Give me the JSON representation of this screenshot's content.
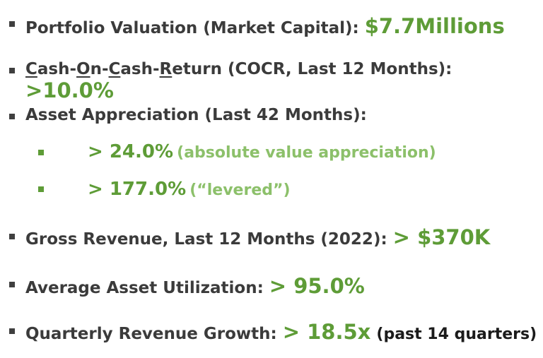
{
  "colors": {
    "text": "#3b3b3b",
    "accent_green": "#5e9c37",
    "light_green": "#8cc06a",
    "bullet": "#3f3f3f"
  },
  "items": [
    {
      "label": "Portfolio Valuation (Market Capital):",
      "value": "$7.7Millions"
    },
    {
      "label_parts": [
        "C",
        "ash-",
        "O",
        "n-",
        "C",
        "ash-",
        "R",
        "eturn"
      ],
      "label_suffix": " (COCR, Last 12 Months):",
      "value": ">10.0%"
    },
    {
      "label": "Asset Appreciation (Last 42 Months):",
      "sub_items": [
        {
          "value": "> 24.0%",
          "note": "(absolute value appreciation)"
        },
        {
          "value": "> 177.0%",
          "note": "(“levered”)"
        }
      ]
    },
    {
      "label": "Gross Revenue, Last 12 Months (2022):",
      "value": "> $370K"
    },
    {
      "label": "Average Asset Utilization:",
      "value": "> 95.0%"
    },
    {
      "label": "Quarterly Revenue Growth:",
      "value": "> 18.5x",
      "note": "(past 14 quarters)"
    }
  ]
}
